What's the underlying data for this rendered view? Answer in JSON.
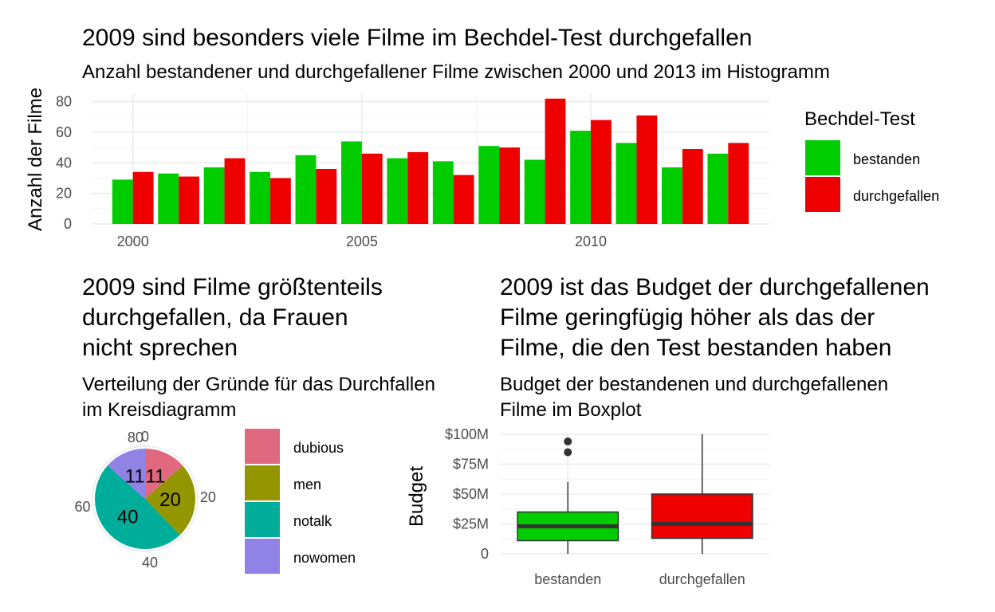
{
  "chart_data": [
    {
      "type": "bar",
      "title": "2009 sind besonders viele Filme im Bechdel-Test durchgefallen",
      "subtitle": "Anzahl bestandener und durchgefallener Filme zwischen 2000 und 2013 im Histogramm",
      "ylabel": "Anzahl der Filme",
      "xlabel": "",
      "x_ticks": [
        2000,
        2005,
        2010
      ],
      "y_ticks": [
        0,
        20,
        40,
        60,
        80
      ],
      "ylim": [
        0,
        85
      ],
      "grid": true,
      "legend": {
        "title": "Bechdel-Test",
        "placement": "right"
      },
      "categories": [
        2000,
        2001,
        2002,
        2003,
        2004,
        2005,
        2006,
        2007,
        2008,
        2009,
        2010,
        2011,
        2012,
        2013
      ],
      "series": [
        {
          "name": "bestanden",
          "color": "#00cc00",
          "values": [
            29,
            33,
            37,
            34,
            45,
            54,
            43,
            41,
            51,
            42,
            61,
            53,
            37,
            46
          ]
        },
        {
          "name": "durchgefallen",
          "color": "#ee0000",
          "values": [
            34,
            31,
            43,
            30,
            36,
            46,
            47,
            32,
            50,
            82,
            68,
            71,
            49,
            53
          ]
        }
      ]
    },
    {
      "type": "pie",
      "title_lines": [
        "2009 sind Filme größtenteils",
        "durchgefallen, da Frauen",
        "nicht sprechen"
      ],
      "subtitle_lines": [
        "Verteilung der Gründe für das Durchfallen",
        "im Kreisdiagramm"
      ],
      "total": 82,
      "ring_ticks": [
        {
          "label": "0",
          "value": 0
        },
        {
          "label": "20",
          "value": 20
        },
        {
          "label": "40",
          "value": 40
        },
        {
          "label": "60",
          "value": 60
        },
        {
          "label": "80",
          "value": 80
        }
      ],
      "slices": [
        {
          "name": "dubious",
          "value": 11,
          "label": "11",
          "color": "#e0697f"
        },
        {
          "name": "men",
          "value": 20,
          "label": "20",
          "color": "#949600"
        },
        {
          "name": "notalk",
          "value": 40,
          "label": "40",
          "color": "#00ad9a"
        },
        {
          "name": "nowomen",
          "value": 11,
          "label": "11",
          "color": "#9182e6"
        }
      ],
      "legend": {
        "placement": "right"
      }
    },
    {
      "type": "boxplot",
      "title_lines": [
        "2009 ist das Budget der durchgefallenen",
        "Filme geringfügig höher als das der",
        "Filme, die den Test bestanden haben"
      ],
      "subtitle_lines": [
        "Budget der bestandenen und durchgefallenen",
        "Filme im Boxplot"
      ],
      "ylabel": "Budget",
      "xlabel": "",
      "ylim": [
        0,
        100
      ],
      "unit": "$M",
      "grid": true,
      "y_ticks": [
        {
          "value": 0,
          "label": "0"
        },
        {
          "value": 25,
          "label": "$25M"
        },
        {
          "value": 50,
          "label": "$50M"
        },
        {
          "value": 75,
          "label": "$75M"
        },
        {
          "value": 100,
          "label": "$100M"
        }
      ],
      "categories": [
        "bestanden",
        "durchgefallen"
      ],
      "boxes": [
        {
          "category": "bestanden",
          "color": "#00cc00",
          "min": 0,
          "q1": 11,
          "median": 23,
          "q3": 35,
          "max": 60,
          "outliers": [
            85,
            94
          ]
        },
        {
          "category": "durchgefallen",
          "color": "#ee0000",
          "min": 0,
          "q1": 13,
          "median": 25,
          "q3": 50,
          "max": 100,
          "outliers": []
        }
      ]
    }
  ]
}
